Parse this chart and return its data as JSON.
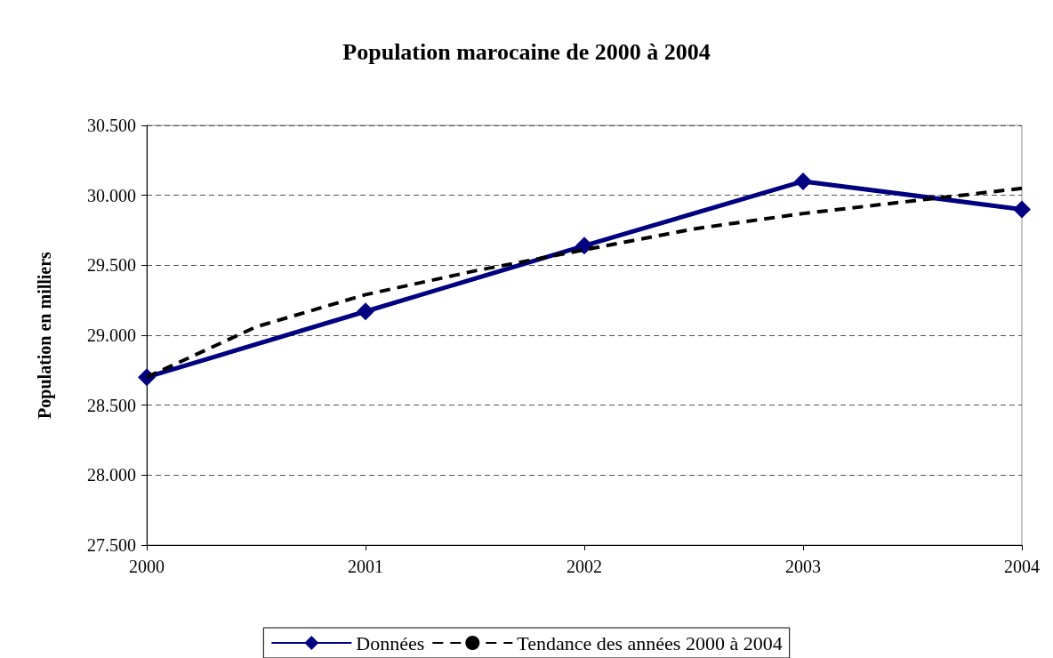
{
  "chart_data": {
    "type": "line",
    "title": "Population marocaine de 2000 à 2004",
    "ylabel": "Population en milliers",
    "xlim": [
      2000,
      2004
    ],
    "xticks": [
      2000,
      2001,
      2002,
      2003,
      2004
    ],
    "ylim": [
      27500,
      30500
    ],
    "yticks": [
      {
        "value": 27500,
        "label": "27.500"
      },
      {
        "value": 28000,
        "label": "28.000"
      },
      {
        "value": 28500,
        "label": "28.500"
      },
      {
        "value": 29000,
        "label": "29.000"
      },
      {
        "value": 29500,
        "label": "29.500"
      },
      {
        "value": 30000,
        "label": "30.000"
      },
      {
        "value": 30500,
        "label": "30.500"
      }
    ],
    "grid": "y",
    "legend": "bottom",
    "series": [
      {
        "name": "Données",
        "color": "#000080",
        "marker": "diamond",
        "line_style": "solid",
        "x": [
          2000,
          2001,
          2002,
          2003,
          2004
        ],
        "values": [
          28700,
          29170,
          29640,
          30100,
          29900
        ]
      },
      {
        "name": "Tendance des années 2000 à 2004",
        "color": "#000000",
        "marker": "none",
        "line_style": "dashed",
        "x": [
          2000,
          2000.5,
          2001,
          2001.5,
          2002,
          2002.5,
          2003,
          2003.5,
          2004
        ],
        "values": [
          28700,
          29060,
          29290,
          29460,
          29610,
          29760,
          29870,
          29960,
          30050
        ]
      }
    ]
  }
}
